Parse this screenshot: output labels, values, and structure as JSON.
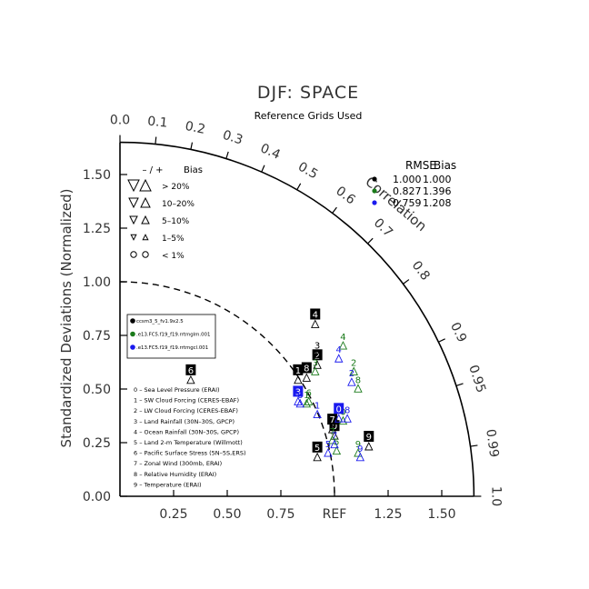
{
  "chart_data": {
    "type": "scatter",
    "title": "DJF: SPACE",
    "subtitle": "Reference Grids Used",
    "ylabel": "Standardized Deviations (Normalized)",
    "xlabel": "",
    "ref_label": "REF",
    "correlation_label": "Correlation",
    "x_ticks": [
      "0.25",
      "0.50",
      "0.75",
      "1.00",
      "1.25",
      "1.50"
    ],
    "y_ticks": [
      "0.00",
      "0.25",
      "0.50",
      "0.75",
      "1.00",
      "1.25",
      "1.50"
    ],
    "corr_ticks": [
      {
        "label": "0.0",
        "r": 0.0
      },
      {
        "label": "0.1",
        "r": 0.1
      },
      {
        "label": "0.2",
        "r": 0.2
      },
      {
        "label": "0.3",
        "r": 0.3
      },
      {
        "label": "0.4",
        "r": 0.4
      },
      {
        "label": "0.5",
        "r": 0.5
      },
      {
        "label": "0.6",
        "r": 0.6
      },
      {
        "label": "0.7",
        "r": 0.7
      },
      {
        "label": "0.8",
        "r": 0.8
      },
      {
        "label": "0.9",
        "r": 0.9
      },
      {
        "label": "0.95",
        "r": 0.95
      },
      {
        "label": "0.99",
        "r": 0.99
      },
      {
        "label": "1.0",
        "r": 1.0
      }
    ],
    "radius_max": 1.65,
    "ref_arc_radius": 1.0,
    "stats_header": {
      "rmse": "RMSE",
      "bias": "Bias"
    },
    "stats": [
      {
        "rmse": "1.000",
        "bias": "1.000",
        "color": "#000000"
      },
      {
        "rmse": "0.827",
        "bias": "1.396",
        "color": "#1a7a1a"
      },
      {
        "rmse": "0.759",
        "bias": "1.208",
        "color": "#1a1aee"
      }
    ],
    "bias_legend": {
      "header_signs": "– / +",
      "header_bias": "Bias",
      "rows": [
        "> 20%",
        "10–20%",
        "5–10%",
        "1–5%",
        "< 1%"
      ]
    },
    "series": [
      {
        "name": "ccsm3_5_fv1.9x2.5",
        "color": "#000000"
      },
      {
        "name": ".e13.FC5.f19_f19.rrtmglm.001",
        "color": "#1a7a1a"
      },
      {
        "name": ".e13.FC5.f19_f19.rrtmgcl.001",
        "color": "#1a1aee"
      }
    ],
    "variables": [
      "0 – Sea Level Pressure (ERAI)",
      "1 – SW Cloud Forcing (CERES-EBAF)",
      "2 – LW Cloud Forcing (CERES-EBAF)",
      "3 – Land Rainfall (30N–30S, GPCP)",
      "4 – Ocean Rainfall (30N–30S, GPCP)",
      "5 – Land 2-m Temperature (Willmott)",
      "6 – Pacific Surface Stress (5N–5S,ERS)",
      "7 – Zonal Wind (300mb, ERAI)",
      "8 – Relative Humidity (ERAI)",
      "9 – Temperature (ERAI)"
    ],
    "points": [
      {
        "s": 0,
        "label": "0",
        "x": 1.0,
        "y": 0.3,
        "boxed": true
      },
      {
        "s": 0,
        "label": "1",
        "x": 0.83,
        "y": 0.56,
        "boxed": true
      },
      {
        "s": 0,
        "label": "2",
        "x": 0.92,
        "y": 0.63,
        "boxed": true
      },
      {
        "s": 0,
        "label": "3",
        "x": 0.92,
        "y": 0.68,
        "boxed": false
      },
      {
        "s": 0,
        "label": "4",
        "x": 0.91,
        "y": 0.82,
        "boxed": true
      },
      {
        "s": 0,
        "label": "5",
        "x": 0.92,
        "y": 0.2,
        "boxed": true
      },
      {
        "s": 0,
        "label": "6",
        "x": 0.33,
        "y": 0.56,
        "boxed": true
      },
      {
        "s": 0,
        "label": "7",
        "x": 0.99,
        "y": 0.33,
        "boxed": true
      },
      {
        "s": 0,
        "label": "8",
        "x": 0.87,
        "y": 0.57,
        "boxed": true
      },
      {
        "s": 0,
        "label": "9",
        "x": 1.16,
        "y": 0.25,
        "boxed": true
      },
      {
        "s": 1,
        "label": "0",
        "x": 1.04,
        "y": 0.37,
        "boxed": false
      },
      {
        "s": 1,
        "label": "1",
        "x": 0.87,
        "y": 0.45,
        "boxed": false
      },
      {
        "s": 1,
        "label": "2",
        "x": 1.09,
        "y": 0.6,
        "boxed": false
      },
      {
        "s": 1,
        "label": "3",
        "x": 0.91,
        "y": 0.6,
        "boxed": false
      },
      {
        "s": 1,
        "label": "4",
        "x": 1.04,
        "y": 0.72,
        "boxed": false
      },
      {
        "s": 1,
        "label": "5",
        "x": 1.01,
        "y": 0.23,
        "boxed": false
      },
      {
        "s": 1,
        "label": "6",
        "x": 0.88,
        "y": 0.46,
        "boxed": false
      },
      {
        "s": 1,
        "label": "7",
        "x": 0.99,
        "y": 0.28,
        "boxed": false
      },
      {
        "s": 1,
        "label": "8",
        "x": 1.11,
        "y": 0.52,
        "boxed": false
      },
      {
        "s": 1,
        "label": "9",
        "x": 1.11,
        "y": 0.22,
        "boxed": false
      },
      {
        "s": 2,
        "label": "0",
        "x": 1.02,
        "y": 0.38,
        "boxed": true
      },
      {
        "s": 2,
        "label": "1",
        "x": 0.92,
        "y": 0.4,
        "boxed": false
      },
      {
        "s": 2,
        "label": "2",
        "x": 1.08,
        "y": 0.55,
        "boxed": false
      },
      {
        "s": 2,
        "label": "3",
        "x": 0.83,
        "y": 0.46,
        "boxed": true
      },
      {
        "s": 2,
        "label": "4",
        "x": 1.02,
        "y": 0.66,
        "boxed": false
      },
      {
        "s": 2,
        "label": "5",
        "x": 0.97,
        "y": 0.22,
        "boxed": false
      },
      {
        "s": 2,
        "label": "6",
        "x": 0.84,
        "y": 0.45,
        "boxed": false
      },
      {
        "s": 2,
        "label": "7",
        "x": 1.0,
        "y": 0.26,
        "boxed": false
      },
      {
        "s": 2,
        "label": "8",
        "x": 1.06,
        "y": 0.38,
        "boxed": false
      },
      {
        "s": 2,
        "label": "9",
        "x": 1.12,
        "y": 0.2,
        "boxed": false
      }
    ]
  }
}
